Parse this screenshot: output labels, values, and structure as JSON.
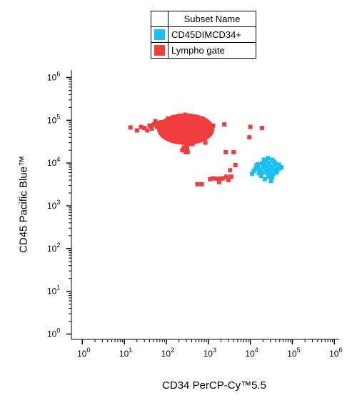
{
  "legend": {
    "header": "Subset Name",
    "items": [
      {
        "label": "CD45DIMCD34+",
        "color": "#16C0F0"
      },
      {
        "label": "Lympho gate",
        "color": "#F03C3C"
      }
    ]
  },
  "chart_data": {
    "type": "scatter",
    "title": "",
    "xlabel": "CD34 PerCP-Cy™5.5",
    "ylabel": "CD45 Pacific Blue™",
    "x_scale": "log",
    "y_scale": "log",
    "xlim": [
      0.55,
      1300000
    ],
    "ylim": [
      0.75,
      1500000
    ],
    "x_ticks": [
      {
        "value": 1,
        "base": "10",
        "exp": "0"
      },
      {
        "value": 10,
        "base": "10",
        "exp": "1"
      },
      {
        "value": 100,
        "base": "10",
        "exp": "2"
      },
      {
        "value": 1000,
        "base": "10",
        "exp": "3"
      },
      {
        "value": 10000,
        "base": "10",
        "exp": "4"
      },
      {
        "value": 100000,
        "base": "10",
        "exp": "5"
      },
      {
        "value": 1000000,
        "base": "10",
        "exp": "6"
      }
    ],
    "y_ticks": [
      {
        "value": 1,
        "base": "10",
        "exp": "0"
      },
      {
        "value": 10,
        "base": "10",
        "exp": "1"
      },
      {
        "value": 100,
        "base": "10",
        "exp": "2"
      },
      {
        "value": 1000,
        "base": "10",
        "exp": "3"
      },
      {
        "value": 10000,
        "base": "10",
        "exp": "4"
      },
      {
        "value": 100000,
        "base": "10",
        "exp": "5"
      },
      {
        "value": 1000000,
        "base": "10",
        "exp": "6"
      }
    ],
    "grid": false,
    "legend_position": "top-center",
    "series": [
      {
        "name": "Lympho gate",
        "color": "#F03C3C",
        "points": [
          [
            300,
            60000
          ],
          [
            350,
            70000
          ],
          [
            250,
            80000
          ],
          [
            400,
            55000
          ],
          [
            200,
            65000
          ],
          [
            500,
            75000
          ],
          [
            150,
            70000
          ],
          [
            280,
            45000
          ],
          [
            320,
            90000
          ],
          [
            450,
            62000
          ],
          [
            180,
            85000
          ],
          [
            220,
            52000
          ],
          [
            380,
            82000
          ],
          [
            600,
            58000
          ],
          [
            120,
            60000
          ],
          [
            260,
            100000
          ],
          [
            330,
            38000
          ],
          [
            420,
            95000
          ],
          [
            700,
            65000
          ],
          [
            90,
            68000
          ],
          [
            270,
            30000
          ],
          [
            350,
            110000
          ],
          [
            160,
            48000
          ],
          [
            550,
            88000
          ],
          [
            240,
            72000
          ],
          [
            800,
            72000
          ],
          [
            100,
            82000
          ],
          [
            300,
            25000
          ],
          [
            400,
            40000
          ],
          [
            650,
            50000
          ],
          [
            190,
            105000
          ],
          [
            470,
            105000
          ],
          [
            230,
            95000
          ],
          [
            520,
            45000
          ],
          [
            140,
            92000
          ],
          [
            360,
            28000
          ],
          [
            280,
            120000
          ],
          [
            760,
            85000
          ],
          [
            80,
            55000
          ],
          [
            310,
            22000
          ],
          [
            60,
            70000
          ],
          [
            50,
            80000
          ],
          [
            70,
            62000
          ],
          [
            40,
            75000
          ],
          [
            110,
            110000
          ],
          [
            900,
            60000
          ],
          [
            1100,
            70000
          ],
          [
            850,
            95000
          ],
          [
            200,
            115000
          ],
          [
            330,
            125000
          ],
          [
            240,
            20000
          ],
          [
            290,
            18000
          ],
          [
            320,
            18000
          ],
          [
            260,
            23000
          ],
          [
            380,
            32000
          ],
          [
            420,
            30000
          ],
          [
            500,
            32000
          ],
          [
            600,
            38000
          ],
          [
            700,
            40000
          ],
          [
            170,
            38000
          ],
          [
            130,
            45000
          ],
          [
            95,
            50000
          ],
          [
            75,
            90000
          ],
          [
            55,
            95000
          ],
          [
            30,
            66000
          ],
          [
            35,
            58000
          ],
          [
            45,
            64000
          ],
          [
            25,
            70000
          ],
          [
            14,
            68000
          ],
          [
            20,
            58000
          ],
          [
            150,
            120000
          ],
          [
            400,
            118000
          ],
          [
            520,
            112000
          ],
          [
            210,
            128000
          ],
          [
            280,
            135000
          ],
          [
            350,
            100000
          ],
          [
            450,
            78000
          ],
          [
            180,
            58000
          ],
          [
            260,
            66000
          ],
          [
            310,
            52000
          ],
          [
            380,
            68000
          ],
          [
            230,
            42000
          ],
          [
            470,
            50000
          ],
          [
            1000,
            50000
          ],
          [
            1000,
            85000
          ],
          [
            1300,
            75000
          ],
          [
            600,
            100000
          ],
          [
            720,
            110000
          ],
          [
            210,
            36000
          ],
          [
            330,
            44000
          ],
          [
            440,
            64000
          ],
          [
            190,
            72000
          ],
          [
            120,
            76000
          ],
          [
            85,
            74000
          ],
          [
            65,
            86000
          ],
          [
            560,
            66000
          ],
          [
            680,
            54000
          ],
          [
            760,
            46000
          ],
          [
            900,
            48000
          ],
          [
            420,
            28000
          ],
          [
            2400,
            80000
          ],
          [
            2600,
            18000
          ],
          [
            850,
            30000
          ],
          [
            4000,
            18000
          ],
          [
            4400,
            9000
          ],
          [
            3300,
            6800
          ],
          [
            3000,
            4000
          ],
          [
            2700,
            4800
          ],
          [
            2000,
            4300
          ],
          [
            2200,
            4400
          ],
          [
            1600,
            4300
          ],
          [
            1300,
            4400
          ],
          [
            1100,
            4200
          ],
          [
            700,
            3200
          ],
          [
            550,
            3200
          ],
          [
            1800,
            3600
          ],
          [
            3500,
            4800
          ],
          [
            10000,
            70000
          ],
          [
            9500,
            40000
          ],
          [
            19000,
            66000
          ]
        ]
      },
      {
        "name": "CD45DIMCD34+",
        "color": "#16C0F0",
        "points": [
          [
            25000,
            7000
          ],
          [
            20000,
            6000
          ],
          [
            30000,
            8000
          ],
          [
            15000,
            7500
          ],
          [
            35000,
            5500
          ],
          [
            22000,
            9000
          ],
          [
            28000,
            10000
          ],
          [
            40000,
            7000
          ],
          [
            18000,
            5000
          ],
          [
            32000,
            6500
          ],
          [
            24000,
            11000
          ],
          [
            45000,
            8500
          ],
          [
            12000,
            6500
          ],
          [
            38000,
            9500
          ],
          [
            27000,
            4800
          ],
          [
            50000,
            7500
          ],
          [
            14000,
            8800
          ],
          [
            21000,
            12000
          ],
          [
            33000,
            4500
          ],
          [
            16000,
            5800
          ],
          [
            26000,
            13000
          ],
          [
            42000,
            6000
          ],
          [
            19000,
            9800
          ],
          [
            30000,
            5200
          ],
          [
            36000,
            11000
          ],
          [
            23000,
            7800
          ],
          [
            29000,
            6800
          ],
          [
            13000,
            7200
          ],
          [
            48000,
            9200
          ],
          [
            17000,
            6200
          ],
          [
            34000,
            8200
          ],
          [
            31000,
            3800
          ],
          [
            22000,
            4200
          ],
          [
            55000,
            8000
          ],
          [
            11000,
            5600
          ],
          [
            26000,
            5900
          ],
          [
            39000,
            10000
          ],
          [
            20000,
            8300
          ],
          [
            44000,
            6700
          ],
          [
            15000,
            9400
          ],
          [
            24000,
            6600
          ],
          [
            37000,
            7300
          ],
          [
            28000,
            9000
          ],
          [
            18000,
            7000
          ],
          [
            33000,
            12000
          ]
        ]
      }
    ]
  }
}
